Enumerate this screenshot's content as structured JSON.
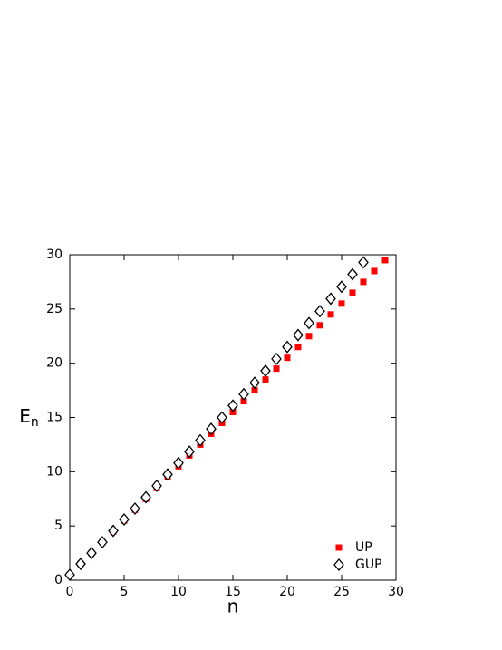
{
  "chart_data": {
    "type": "scatter",
    "x_label": "n",
    "y_label": "E",
    "y_label_sub": "n",
    "xlim": [
      0,
      30
    ],
    "ylim": [
      0,
      30
    ],
    "xticks": [
      0,
      5,
      10,
      15,
      20,
      25,
      30
    ],
    "yticks": [
      0,
      5,
      10,
      15,
      20,
      25,
      30
    ],
    "legend": "bottom-right",
    "series": [
      {
        "name": "UP",
        "color": "#ff0000",
        "marker": "square",
        "x": [
          0,
          1,
          2,
          3,
          4,
          5,
          6,
          7,
          8,
          9,
          10,
          11,
          12,
          13,
          14,
          15,
          16,
          17,
          18,
          19,
          20,
          21,
          22,
          23,
          24,
          25,
          26,
          27,
          28,
          29
        ],
        "values": [
          0.5,
          1.5,
          2.5,
          3.5,
          4.5,
          5.5,
          6.5,
          7.5,
          8.5,
          9.5,
          10.5,
          11.5,
          12.5,
          13.5,
          14.5,
          15.5,
          16.5,
          17.5,
          18.5,
          19.5,
          20.5,
          21.5,
          22.5,
          23.5,
          24.5,
          25.5,
          26.5,
          27.5,
          28.5,
          29.5
        ]
      },
      {
        "name": "GUP",
        "color": "#000000",
        "marker": "diamond",
        "x": [
          0,
          1,
          2,
          3,
          4,
          5,
          6,
          7,
          8,
          9,
          10,
          11,
          12,
          13,
          14,
          15,
          16,
          17,
          18,
          19,
          20,
          21,
          22,
          23,
          24,
          25,
          26,
          27
        ],
        "values": [
          0.5,
          1.5,
          2.5,
          3.5,
          4.55,
          5.6,
          6.6,
          7.65,
          8.7,
          9.75,
          10.8,
          11.85,
          12.9,
          13.95,
          15.0,
          16.1,
          17.15,
          18.2,
          19.3,
          20.4,
          21.5,
          22.6,
          23.7,
          24.8,
          25.95,
          27.05,
          28.2,
          29.3
        ]
      }
    ]
  }
}
